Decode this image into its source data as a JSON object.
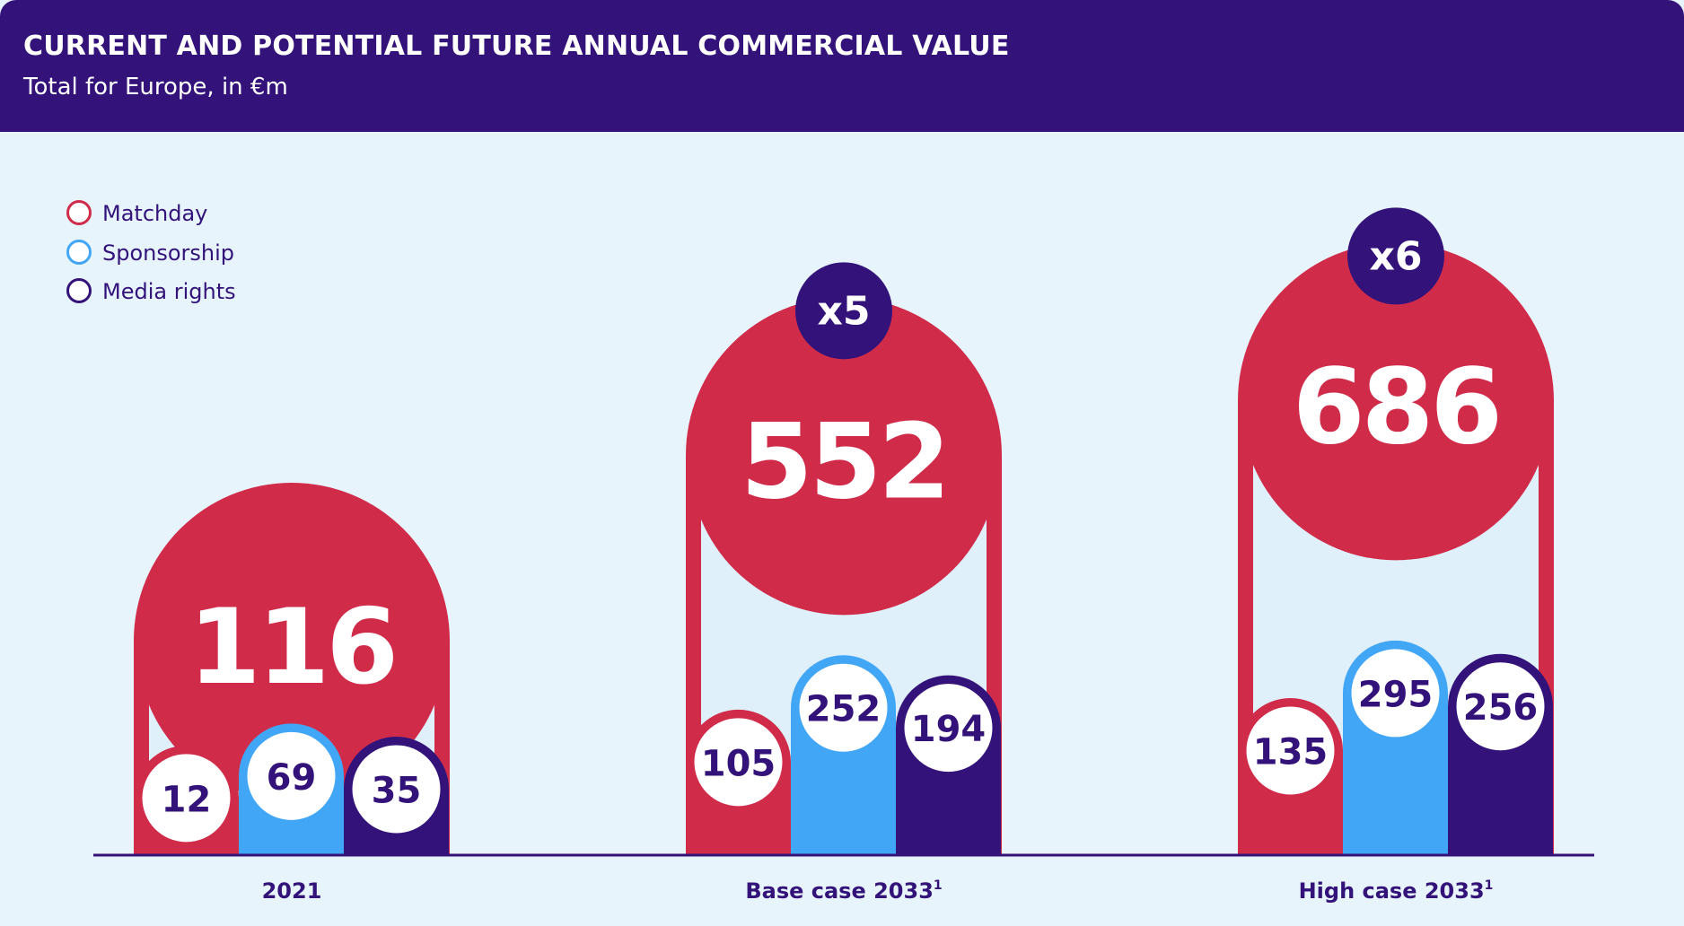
{
  "header": {
    "title": "CURRENT AND POTENTIAL FUTURE ANNUAL COMMERCIAL VALUE",
    "subtitle": "Total for Europe, in €m"
  },
  "colors": {
    "header_bg": "#33137a",
    "background": "#e8f4fc",
    "inner_bg": "#e0f0fb",
    "matchday": "#d02c4a",
    "sponsorship": "#42a6f7",
    "media_rights": "#33137a",
    "label_text": "#33137a",
    "total_text": "#ffffff"
  },
  "legend": [
    {
      "label": "Matchday",
      "color": "#d02c4a"
    },
    {
      "label": "Sponsorship",
      "color": "#42a6f7"
    },
    {
      "label": "Media rights",
      "color": "#33137a"
    }
  ],
  "chart_data": {
    "type": "bar",
    "title": "CURRENT AND POTENTIAL FUTURE ANNUAL COMMERCIAL VALUE",
    "subtitle": "Total for Europe, in €m",
    "categories": [
      {
        "label": "2021",
        "sup": ""
      },
      {
        "label": "Base case 2033",
        "sup": "1"
      },
      {
        "label": "High case 2033",
        "sup": "1"
      }
    ],
    "series": [
      {
        "name": "Matchday",
        "values": [
          12,
          105,
          135
        ]
      },
      {
        "name": "Sponsorship",
        "values": [
          69,
          252,
          295
        ]
      },
      {
        "name": "Media rights",
        "values": [
          35,
          194,
          256
        ]
      }
    ],
    "totals": [
      116,
      552,
      686
    ],
    "multipliers": [
      "",
      "x5",
      "x6"
    ],
    "legend_position": "top-left",
    "grid": false
  }
}
